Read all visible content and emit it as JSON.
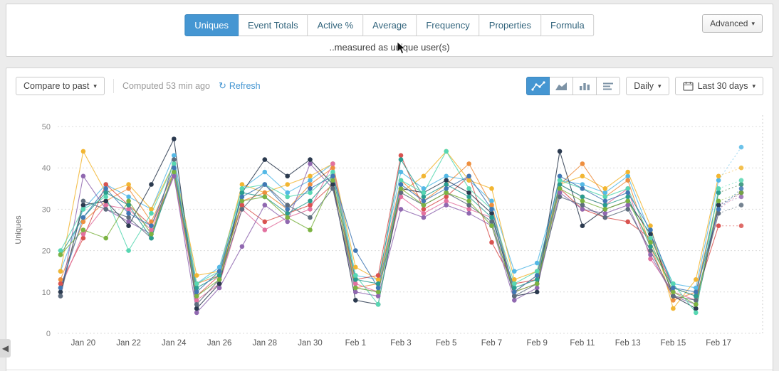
{
  "colors": {
    "accent": "#4596d2"
  },
  "icons": {
    "chevron_down": "▾",
    "refresh": "↻",
    "collapse_left": "◀"
  },
  "header": {
    "tabs": [
      {
        "label": "Uniques",
        "active": true
      },
      {
        "label": "Event Totals",
        "active": false
      },
      {
        "label": "Active %",
        "active": false
      },
      {
        "label": "Average",
        "active": false
      },
      {
        "label": "Frequency",
        "active": false
      },
      {
        "label": "Properties",
        "active": false
      },
      {
        "label": "Formula",
        "active": false
      }
    ],
    "advanced_label": "Advanced",
    "subtitle": "..measured as unique user(s)"
  },
  "toolbar": {
    "compare_label": "Compare to past",
    "computed_label": "Computed 53 min ago",
    "refresh_label": "Refresh",
    "interval_label": "Daily",
    "range_label": "Last 30 days",
    "chart_types": [
      "line",
      "area",
      "bar",
      "rows"
    ],
    "active_chart_type": "line"
  },
  "chart_data": {
    "type": "line",
    "ylabel": "Uniques",
    "ylim": [
      0,
      50
    ],
    "yticks": [
      0,
      10,
      20,
      30,
      40,
      50
    ],
    "grid": "horizontal-dashed",
    "last_segment_style": "dotted",
    "x": [
      "Jan 19",
      "Jan 20",
      "Jan 21",
      "Jan 22",
      "Jan 23",
      "Jan 24",
      "Jan 25",
      "Jan 26",
      "Jan 27",
      "Jan 28",
      "Jan 29",
      "Jan 30",
      "Jan 31",
      "Feb 1",
      "Feb 2",
      "Feb 3",
      "Feb 4",
      "Feb 5",
      "Feb 6",
      "Feb 7",
      "Feb 8",
      "Feb 9",
      "Feb 10",
      "Feb 11",
      "Feb 12",
      "Feb 13",
      "Feb 14",
      "Feb 15",
      "Feb 16",
      "Feb 17",
      "Feb 18"
    ],
    "xtick_labels": [
      "Jan 20",
      "Jan 22",
      "Jan 24",
      "Jan 26",
      "Jan 28",
      "Jan 30",
      "Feb 1",
      "Feb 3",
      "Feb 5",
      "Feb 7",
      "Feb 9",
      "Feb 11",
      "Feb 13",
      "Feb 15",
      "Feb 17"
    ],
    "series": [
      {
        "name": "series-01",
        "color": "#55b9e6",
        "values": [
          15,
          30,
          36,
          33,
          30,
          43,
          12,
          16,
          35,
          39,
          34,
          37,
          41,
          14,
          13,
          39,
          35,
          38,
          37,
          32,
          15,
          17,
          37,
          36,
          34,
          38,
          24,
          12,
          11,
          37,
          45
        ]
      },
      {
        "name": "series-02",
        "color": "#f2b632",
        "values": [
          15,
          44,
          34,
          36,
          30,
          41,
          14,
          15,
          36,
          34,
          36,
          38,
          41,
          16,
          13,
          34,
          38,
          44,
          37,
          35,
          13,
          15,
          36,
          38,
          35,
          39,
          26,
          6,
          13,
          38,
          40
        ]
      },
      {
        "name": "series-03",
        "color": "#ee8f3f",
        "values": [
          13,
          27,
          32,
          35,
          27,
          39,
          12,
          14,
          32,
          34,
          30,
          36,
          40,
          11,
          12,
          37,
          32,
          36,
          41,
          31,
          10,
          14,
          36,
          41,
          33,
          37,
          21,
          8,
          10,
          34,
          36
        ]
      },
      {
        "name": "series-04",
        "color": "#d95350",
        "values": [
          12,
          23,
          36,
          31,
          26,
          38,
          9,
          14,
          31,
          27,
          29,
          31,
          36,
          13,
          14,
          43,
          30,
          33,
          38,
          22,
          12,
          13,
          35,
          30,
          28,
          27,
          23,
          11,
          9,
          26,
          26
        ]
      },
      {
        "name": "series-05",
        "color": "#e2719f",
        "values": [
          11,
          24,
          31,
          30,
          25,
          38,
          8,
          12,
          30,
          25,
          28,
          30,
          41,
          12,
          10,
          33,
          29,
          32,
          30,
          28,
          10,
          12,
          36,
          33,
          31,
          35,
          18,
          10,
          8,
          30,
          34
        ]
      },
      {
        "name": "series-06",
        "color": "#9068b0",
        "values": [
          9,
          38,
          30,
          27,
          24,
          38,
          5,
          11,
          21,
          31,
          27,
          41,
          35,
          10,
          9,
          30,
          28,
          31,
          29,
          26,
          8,
          11,
          34,
          30,
          29,
          31,
          19,
          9,
          7,
          31,
          33
        ]
      },
      {
        "name": "series-07",
        "color": "#2b3a4f",
        "values": [
          10,
          31,
          32,
          26,
          36,
          47,
          6,
          12,
          34,
          42,
          38,
          42,
          36,
          8,
          7,
          35,
          34,
          37,
          34,
          29,
          9,
          10,
          44,
          26,
          30,
          32,
          24,
          9,
          6,
          31,
          34
        ]
      },
      {
        "name": "series-08",
        "color": "#5d6d7e",
        "values": [
          9,
          32,
          30,
          28,
          23,
          42,
          7,
          13,
          30,
          36,
          31,
          28,
          35,
          11,
          10,
          34,
          31,
          34,
          31,
          27,
          9,
          12,
          33,
          31,
          28,
          30,
          20,
          9,
          8,
          29,
          31
        ]
      },
      {
        "name": "series-09",
        "color": "#2a9d8f",
        "values": [
          19,
          28,
          34,
          31,
          23,
          39,
          11,
          14,
          34,
          33,
          29,
          32,
          38,
          13,
          12,
          42,
          33,
          36,
          33,
          28,
          11,
          13,
          36,
          33,
          31,
          33,
          21,
          11,
          9,
          34,
          36
        ]
      },
      {
        "name": "series-10",
        "color": "#57d7b2",
        "values": [
          20,
          30,
          33,
          20,
          29,
          41,
          12,
          15,
          35,
          36,
          33,
          34,
          39,
          14,
          7,
          37,
          34,
          44,
          35,
          30,
          12,
          15,
          37,
          35,
          33,
          35,
          23,
          12,
          5,
          35,
          37
        ]
      },
      {
        "name": "series-11",
        "color": "#7cb342",
        "values": [
          19,
          25,
          23,
          32,
          24,
          39,
          9,
          13,
          32,
          33,
          28,
          25,
          37,
          11,
          10,
          35,
          31,
          34,
          32,
          26,
          10,
          12,
          35,
          32,
          30,
          32,
          22,
          10,
          7,
          32,
          34
        ]
      },
      {
        "name": "series-12",
        "color": "#4178b4",
        "values": [
          11,
          28,
          35,
          29,
          26,
          40,
          10,
          15,
          33,
          36,
          30,
          35,
          38,
          20,
          11,
          36,
          32,
          35,
          38,
          30,
          10,
          14,
          38,
          35,
          32,
          34,
          25,
          11,
          10,
          30,
          35
        ]
      }
    ]
  }
}
